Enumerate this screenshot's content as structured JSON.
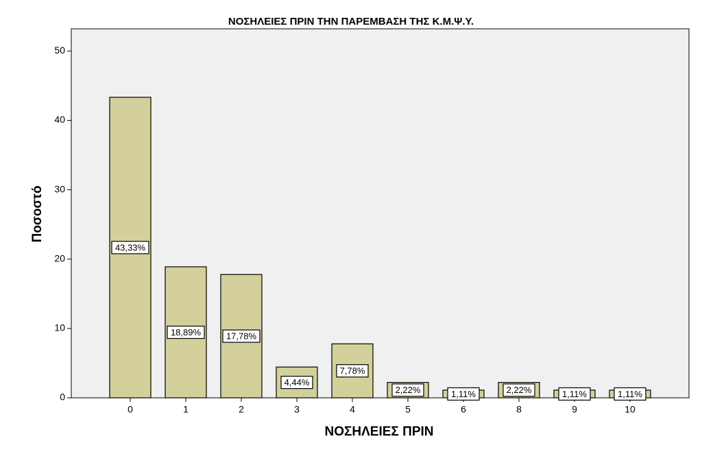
{
  "chart_data": {
    "type": "bar",
    "title": "ΝΟΣΗΛΕΙΕΣ ΠΡΙΝ ΤΗΝ ΠΑΡΕΜΒΑΣΗ ΤΗΣ Κ.Μ.Ψ.Υ.",
    "x_label": "ΝΟΣΗΛΕΙΕΣ ΠΡΙΝ",
    "y_label": "Ποσοστό",
    "categories": [
      "0",
      "1",
      "2",
      "3",
      "4",
      "5",
      "6",
      "8",
      "9",
      "10"
    ],
    "values": [
      43.33,
      18.89,
      17.78,
      4.44,
      7.78,
      2.22,
      1.11,
      2.22,
      1.11,
      1.11
    ],
    "value_labels": [
      "43,33%",
      "18,89%",
      "17,78%",
      "4,44%",
      "7,78%",
      "2,22%",
      "1,11%",
      "2,22%",
      "1,11%",
      "1,11%"
    ],
    "color": "#d4d09c",
    "ylim": [
      0,
      53.2
    ],
    "yticks": [
      0,
      10,
      20,
      30,
      40,
      50
    ]
  }
}
